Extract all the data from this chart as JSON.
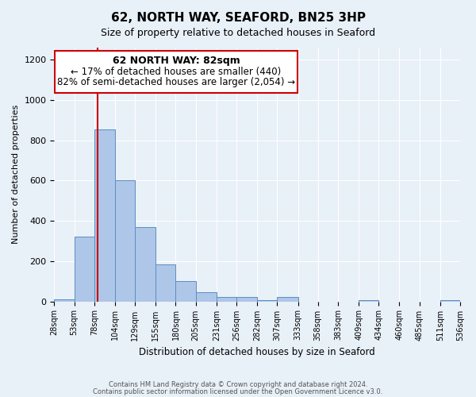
{
  "title": "62, NORTH WAY, SEAFORD, BN25 3HP",
  "subtitle": "Size of property relative to detached houses in Seaford",
  "xlabel": "Distribution of detached houses by size in Seaford",
  "ylabel": "Number of detached properties",
  "bar_color": "#aec6e8",
  "bar_edge_color": "#5a8fc2",
  "background_color": "#e8f0f8",
  "grid_color": "#ffffff",
  "annotation_box_color": "#ffffff",
  "annotation_box_edge": "#cc0000",
  "vline_color": "#cc0000",
  "vline_x": 82,
  "bin_edges": [
    28,
    53,
    78,
    104,
    129,
    155,
    180,
    205,
    231,
    256,
    282,
    307,
    333,
    358,
    383,
    409,
    434,
    460,
    485,
    511,
    536
  ],
  "bin_labels": [
    "28sqm",
    "53sqm",
    "78sqm",
    "104sqm",
    "129sqm",
    "155sqm",
    "180sqm",
    "205sqm",
    "231sqm",
    "256sqm",
    "282sqm",
    "307sqm",
    "333sqm",
    "358sqm",
    "383sqm",
    "409sqm",
    "434sqm",
    "460sqm",
    "485sqm",
    "511sqm",
    "536sqm"
  ],
  "bar_heights": [
    10,
    320,
    855,
    600,
    370,
    185,
    100,
    45,
    20,
    20,
    5,
    20,
    0,
    0,
    0,
    5,
    0,
    0,
    0,
    5
  ],
  "ylim": [
    0,
    1260
  ],
  "yticks": [
    0,
    200,
    400,
    600,
    800,
    1000,
    1200
  ],
  "annotation_line1": "62 NORTH WAY: 82sqm",
  "annotation_line2": "← 17% of detached houses are smaller (440)",
  "annotation_line3": "82% of semi-detached houses are larger (2,054) →",
  "footer_line1": "Contains HM Land Registry data © Crown copyright and database right 2024.",
  "footer_line2": "Contains public sector information licensed under the Open Government Licence v3.0."
}
